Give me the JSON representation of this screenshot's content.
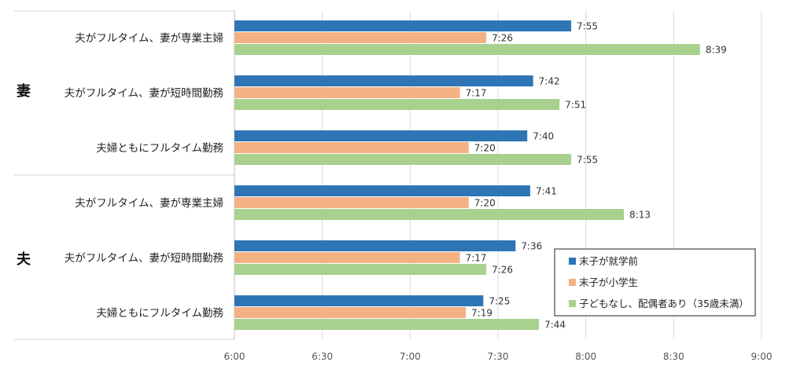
{
  "chart_data": {
    "type": "bar",
    "orientation": "horizontal",
    "groups": [
      {
        "label": "妻",
        "categories": [
          "夫がフルタイム、妻が専業主婦",
          "夫がフルタイム、妻が短時間勤務",
          "夫婦ともにフルタイム勤務"
        ]
      },
      {
        "label": "夫",
        "categories": [
          "夫がフルタイム、妻が専業主婦",
          "夫がフルタイム、妻が短時間勤務",
          "夫婦ともにフルタイム勤務"
        ]
      }
    ],
    "categories": [
      "夫がフルタイム、妻が専業主婦",
      "夫がフルタイム、妻が短時間勤務",
      "夫婦ともにフルタイム勤務",
      "夫がフルタイム、妻が専業主婦",
      "夫がフルタイム、妻が短時間勤務",
      "夫婦ともにフルタイム勤務"
    ],
    "series": [
      {
        "name": "末子が就学前",
        "color": "#2E75B6",
        "values": [
          "7:55",
          "7:42",
          "7:40",
          "7:41",
          "7:36",
          "7:25"
        ]
      },
      {
        "name": "末子が小学生",
        "color": "#F4B183",
        "values": [
          "7:26",
          "7:17",
          "7:20",
          "7:20",
          "7:17",
          "7:19"
        ]
      },
      {
        "name": "子どもなし、配偶者あり（35歳未満）",
        "color": "#A9D18E",
        "values": [
          "8:39",
          "7:51",
          "7:55",
          "8:13",
          "7:26",
          "7:44"
        ]
      }
    ],
    "x_ticks": [
      "6:00",
      "6:30",
      "7:00",
      "7:30",
      "8:00",
      "8:30",
      "9:00"
    ],
    "xlim": [
      "6:00",
      "9:00"
    ],
    "grid": "vertical",
    "legend_position": "bottom-right"
  }
}
